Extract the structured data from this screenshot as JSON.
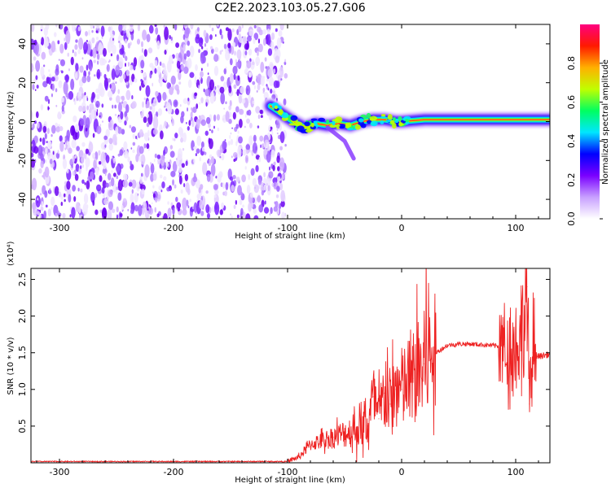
{
  "title": "C2E2.2023.103.05.27.G06",
  "chart_data": [
    {
      "type": "heatmap",
      "xlabel": "Height of straight line (km)",
      "ylabel": "Frequency (Hz)",
      "xlim": [
        -325,
        130
      ],
      "ylim": [
        -50,
        50
      ],
      "xticks": [
        -300,
        -200,
        -100,
        0,
        100
      ],
      "yticks": [
        -40,
        -20,
        0,
        20,
        40
      ],
      "colorbar": {
        "label": "Normalized spectral amplitude",
        "range": [
          0,
          1
        ],
        "ticks": [
          "0.0",
          "0.2",
          "0.4",
          "0.6",
          "0.8"
        ],
        "colormap": [
          "#ffffff",
          "#c8a0ff",
          "#7a00ff",
          "#0000ff",
          "#00e6ff",
          "#00ff60",
          "#c0ff00",
          "#ffb000",
          "#ff1a00",
          "#ff0080"
        ]
      },
      "trace": {
        "x": [
          -115,
          -105,
          -95,
          -85,
          -75,
          -65,
          -55,
          -45,
          -35,
          -25,
          -15,
          -5,
          0,
          20,
          40,
          60,
          80,
          100,
          120,
          130
        ],
        "y": [
          8,
          4,
          0,
          -3,
          -1,
          -2,
          -1,
          -2,
          0,
          1,
          1,
          0,
          0,
          1,
          1,
          1,
          1,
          1,
          1,
          1
        ]
      },
      "noise_region_x": [
        -325,
        -110
      ]
    },
    {
      "type": "line",
      "xlabel": "Height of straight line (km)",
      "ylabel": "SNR (10 * v/v)",
      "y_multiplier": "(x10⁴)",
      "xlim": [
        -325,
        130
      ],
      "ylim": [
        0,
        2.65
      ],
      "xticks": [
        -300,
        -200,
        -100,
        0,
        100
      ],
      "yticks": [
        "0.5",
        "1.0",
        "1.5",
        "2.0",
        "2.5"
      ],
      "series": [
        {
          "color": "#ee2222",
          "x": [
            -325,
            -100,
            -90,
            -80,
            -70,
            -60,
            -50,
            -40,
            -30,
            -25,
            -20,
            -15,
            -10,
            -5,
            0,
            10,
            20,
            30,
            40,
            50,
            60,
            70,
            80,
            90,
            100,
            105,
            108,
            110,
            112,
            115,
            120,
            130
          ],
          "y": [
            0.01,
            0.02,
            0.08,
            0.25,
            0.3,
            0.35,
            0.4,
            0.45,
            0.5,
            0.9,
            0.6,
            0.95,
            0.8,
            1.0,
            1.0,
            1.15,
            1.35,
            1.5,
            1.6,
            1.62,
            1.62,
            1.61,
            1.6,
            1.58,
            1.58,
            1.7,
            2.0,
            2.4,
            0.8,
            1.5,
            1.45,
            1.48
          ]
        }
      ]
    }
  ]
}
